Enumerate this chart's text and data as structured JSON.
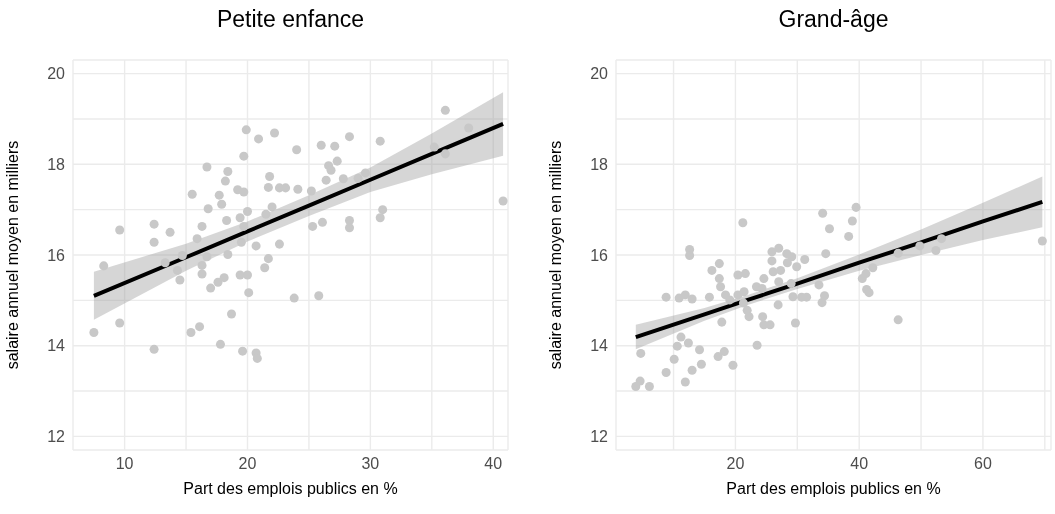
{
  "chart_data": [
    {
      "type": "scatter",
      "title": "Petite enfance",
      "xlabel": "Part des emplois publics en %",
      "ylabel": "salaire annuel moyen en milliers",
      "xlim": [
        5.8,
        41.2
      ],
      "xticks": [
        10,
        {
          "value": 15,
          "label": null
        },
        20,
        {
          "value": 25,
          "label": null
        },
        30,
        {
          "value": 35,
          "label": null
        },
        40
      ],
      "ylim": [
        11.7,
        20.3
      ],
      "yticks": [
        12,
        {
          "value": 13,
          "label": null
        },
        14,
        {
          "value": 15,
          "label": null
        },
        16,
        {
          "value": 17,
          "label": null
        },
        18,
        {
          "value": 19,
          "label": null
        },
        20
      ],
      "grid": true,
      "series": [
        {
          "marker": "circle",
          "color": "#c8c8c8",
          "x": [
            7.5,
            8.3,
            9.6,
            9.6,
            12.4,
            12.4,
            12.4,
            13.7,
            13.3,
            14.3,
            14.5,
            14.7,
            15.4,
            15.5,
            15.9,
            16.1,
            16.3,
            16.3,
            16.3,
            16.7,
            16.8,
            17.0,
            16.7,
            17.6,
            17.7,
            17.9,
            17.8,
            18.1,
            18.2,
            18.4,
            18.3,
            18.4,
            18.7,
            19.2,
            19.4,
            19.7,
            19.7,
            19.9,
            19.4,
            20.0,
            19.6,
            20.1,
            20.0,
            19.7,
            19.5,
            20.7,
            20.8,
            20.9,
            20.7,
            21.4,
            21.5,
            21.8,
            21.7,
            21.7,
            22.2,
            24.0,
            22.6,
            23.1,
            24.1,
            22.0,
            22.6,
            23.8,
            25.8,
            25.3,
            26.1,
            25.2,
            26.0,
            27.1,
            28.3,
            26.6,
            26.8,
            27.3,
            26.4,
            27.8,
            29.0,
            29.6,
            30.8,
            28.3,
            28.3,
            31.0,
            30.8,
            35.2,
            36.1,
            36.1,
            38.0,
            40.8
          ],
          "values": [
            14.29,
            15.76,
            16.55,
            14.5,
            16.68,
            16.28,
            13.92,
            16.5,
            15.83,
            15.66,
            15.45,
            15.99,
            14.29,
            17.34,
            16.36,
            14.42,
            15.77,
            15.58,
            16.63,
            17.94,
            17.02,
            15.27,
            15.96,
            15.4,
            17.32,
            17.12,
            14.03,
            15.5,
            17.63,
            17.84,
            16.76,
            16.01,
            14.7,
            17.44,
            16.82,
            17.39,
            18.18,
            18.76,
            15.56,
            15.56,
            13.88,
            15.17,
            16.96,
            16.63,
            16.28,
            13.84,
            13.72,
            18.56,
            16.2,
            15.72,
            16.9,
            17.73,
            17.49,
            15.92,
            18.69,
            18.32,
            17.48,
            17.48,
            17.45,
            17.06,
            16.24,
            15.05,
            15.1,
            16.63,
            16.72,
            17.41,
            18.42,
            18.4,
            18.61,
            17.97,
            17.87,
            18.07,
            17.65,
            17.68,
            17.69,
            17.81,
            18.51,
            16.76,
            16.6,
            17.0,
            16.82,
            18.38,
            18.23,
            19.19,
            18.8,
            17.19
          ]
        },
        {
          "type": "line",
          "marker": "none",
          "color": "#000000",
          "x": [
            7.5,
            15,
            20,
            25,
            30,
            35,
            40.8
          ],
          "values": [
            15.1,
            15.95,
            16.52,
            17.09,
            17.66,
            18.23,
            18.89
          ],
          "lower": [
            14.57,
            15.65,
            16.3,
            16.86,
            17.39,
            17.78,
            18.19
          ],
          "upper": [
            15.63,
            16.25,
            16.74,
            17.32,
            17.93,
            18.68,
            19.59
          ]
        }
      ]
    },
    {
      "type": "scatter",
      "title": "Grand-âge",
      "xlabel": "Part des emplois publics en %",
      "ylabel": "salaire annuel moyen en milliers",
      "xlim": [
        0.7,
        71
      ],
      "xticks": [
        {
          "value": 10,
          "label": null
        },
        20,
        {
          "value": 30,
          "label": null
        },
        40,
        {
          "value": 50,
          "label": null
        },
        60,
        {
          "value": 70,
          "label": null
        }
      ],
      "ylim": [
        11.7,
        20.3
      ],
      "yticks": [
        12,
        {
          "value": 13,
          "label": null
        },
        14,
        {
          "value": 15,
          "label": null
        },
        16,
        {
          "value": 17,
          "label": null
        },
        18,
        {
          "value": 19,
          "label": null
        },
        20
      ],
      "grid": true,
      "series": [
        {
          "marker": "circle",
          "color": "#c8c8c8",
          "x": [
            3.9,
            4.6,
            6.1,
            4.7,
            8.8,
            8.8,
            10.1,
            10.6,
            11.2,
            11.9,
            12.4,
            13.0,
            14.2,
            14.5,
            10.9,
            11.9,
            13.0,
            12.6,
            12.6,
            15.8,
            16.2,
            17.4,
            17.4,
            17.6,
            17.8,
            17.2,
            18.2,
            19.6,
            18.4,
            19.1,
            20.4,
            21.6,
            21.2,
            20.4,
            21.4,
            21.3,
            21.9,
            22.2,
            23.5,
            23.4,
            24.3,
            24.6,
            24.4,
            24.6,
            25.6,
            25.9,
            25.9,
            27.0,
            26.1,
            27.3,
            27.0,
            26.9,
            28.3,
            29.1,
            28.4,
            29.3,
            29.7,
            29.9,
            31.2,
            30.7,
            31.5,
            29.0,
            33.5,
            34.0,
            34.4,
            34.6,
            34.1,
            35.2,
            38.3,
            38.9,
            39.5,
            40.5,
            41.1,
            42.2,
            41.2,
            41.6,
            46.3,
            46.3,
            49.8,
            52.4,
            53.3,
            69.6
          ],
          "values": [
            13.1,
            13.22,
            13.1,
            13.83,
            13.41,
            15.07,
            13.7,
            13.99,
            14.19,
            13.2,
            14.06,
            13.46,
            13.91,
            13.59,
            15.05,
            15.12,
            15.03,
            16.12,
            15.99,
            15.07,
            15.66,
            15.81,
            15.48,
            15.3,
            14.52,
            13.76,
            13.87,
            13.57,
            15.12,
            15.01,
            15.56,
            15.59,
            16.71,
            15.12,
            15.19,
            14.94,
            14.78,
            14.64,
            14.01,
            15.3,
            15.26,
            15.48,
            14.64,
            14.46,
            14.46,
            16.07,
            15.87,
            16.15,
            15.63,
            15.66,
            15.41,
            14.9,
            16.03,
            15.96,
            15.83,
            15.08,
            14.5,
            15.74,
            15.9,
            15.07,
            15.07,
            15.37,
            15.34,
            14.95,
            15.1,
            16.03,
            16.92,
            16.58,
            16.41,
            16.75,
            17.05,
            15.48,
            15.59,
            15.72,
            15.24,
            15.17,
            14.57,
            16.04,
            16.2,
            16.1,
            16.36,
            16.31
          ]
        },
        {
          "type": "line",
          "marker": "none",
          "color": "#000000",
          "x": [
            3.9,
            15,
            22,
            30,
            40,
            50,
            60,
            69.6
          ],
          "values": [
            14.19,
            14.69,
            15.01,
            15.37,
            15.83,
            16.28,
            16.74,
            17.17
          ],
          "lower": [
            13.92,
            14.55,
            14.9,
            15.25,
            15.65,
            16.0,
            16.33,
            16.61
          ],
          "upper": [
            14.46,
            14.83,
            15.12,
            15.49,
            16.01,
            16.56,
            17.15,
            17.73
          ]
        }
      ]
    }
  ]
}
